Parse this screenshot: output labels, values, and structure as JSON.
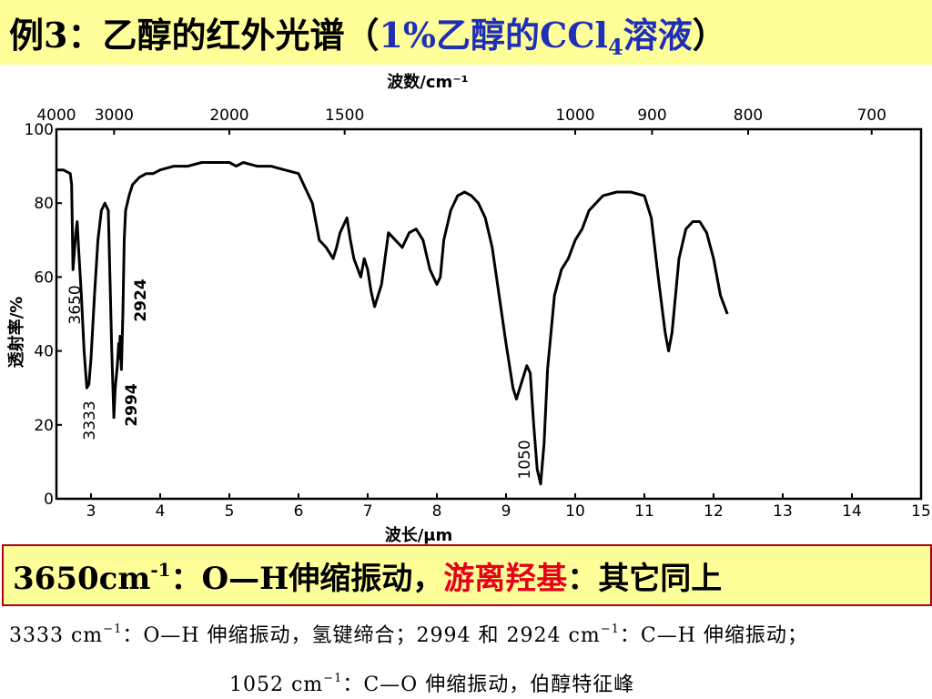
{
  "title": {
    "prefix": "例3：乙醇的红外光谱（",
    "highlight": "1%乙醇的CCl",
    "subscript": "4",
    "suffix_blue": "溶液",
    "suffix": "）"
  },
  "note": {
    "number": "3650cm",
    "exp": "-1",
    "part1": "：O—H伸缩振动，",
    "red": "游离羟基",
    "part2": "：其它同上"
  },
  "caption": {
    "line1_a": "3333 cm",
    "line1_exp1": "−1",
    "line1_b": "：O—H 伸缩振动，氢键缔合；2994 和 2924 cm",
    "line1_exp2": "−1",
    "line1_c": "：C—H 伸缩振动；",
    "line2_a": "1052 cm",
    "line2_exp": "−1",
    "line2_b": "：C—O 伸缩振动，伯醇特征峰"
  },
  "chart_data": {
    "type": "line",
    "title": "",
    "xlabel": "波长/μm",
    "x2label": "波数/cm⁻¹",
    "ylabel": "透射率/%",
    "xlim": [
      2.5,
      15
    ],
    "ylim": [
      0,
      100
    ],
    "x_ticks": [
      3,
      4,
      5,
      6,
      7,
      8,
      9,
      10,
      11,
      12,
      13,
      14,
      15
    ],
    "y_ticks": [
      0,
      20,
      40,
      60,
      80,
      100
    ],
    "top_ticks": [
      "4000",
      "3000",
      "2000",
      "1500",
      "1000",
      "900",
      "800",
      "700"
    ],
    "top_tick_values": [
      4000,
      3000,
      2000,
      1500,
      1000,
      900,
      800,
      700
    ],
    "series": [
      {
        "x": [
          2.5,
          2.6,
          2.7,
          2.72,
          2.74,
          2.78,
          2.8,
          2.82,
          2.86,
          2.9,
          2.94,
          2.97,
          3.0,
          3.05,
          3.1,
          3.15,
          3.2,
          3.25,
          3.3,
          3.33,
          3.35,
          3.38,
          3.4,
          3.41,
          3.42,
          3.44,
          3.46,
          3.48,
          3.5,
          3.55,
          3.6,
          3.7,
          3.8,
          3.9,
          4.0,
          4.2,
          4.4,
          4.6,
          4.8,
          5.0,
          5.1,
          5.2,
          5.4,
          5.6,
          5.8,
          6.0,
          6.2,
          6.3,
          6.4,
          6.5,
          6.55,
          6.6,
          6.7,
          6.75,
          6.8,
          6.9,
          6.95,
          7.0,
          7.05,
          7.1,
          7.2,
          7.25,
          7.3,
          7.4,
          7.5,
          7.6,
          7.7,
          7.8,
          7.9,
          8.0,
          8.05,
          8.1,
          8.2,
          8.3,
          8.4,
          8.5,
          8.6,
          8.7,
          8.8,
          8.9,
          9.0,
          9.1,
          9.15,
          9.2,
          9.3,
          9.35,
          9.4,
          9.45,
          9.5,
          9.55,
          9.6,
          9.7,
          9.8,
          9.9,
          10.0,
          10.1,
          10.2,
          10.4,
          10.6,
          10.8,
          11.0,
          11.1,
          11.2,
          11.3,
          11.35,
          11.4,
          11.5,
          11.6,
          11.7,
          11.8,
          11.9,
          12.0,
          12.1,
          12.2
        ],
        "y": [
          89,
          89,
          88,
          85,
          62,
          72,
          75,
          68,
          55,
          40,
          30,
          31,
          38,
          55,
          70,
          78,
          80,
          78,
          40,
          22,
          30,
          36,
          42,
          38,
          44,
          35,
          50,
          70,
          78,
          82,
          85,
          87,
          88,
          88,
          89,
          90,
          90,
          91,
          91,
          91,
          90,
          91,
          90,
          90,
          89,
          88,
          80,
          70,
          68,
          65,
          68,
          72,
          76,
          70,
          65,
          60,
          65,
          62,
          56,
          52,
          58,
          65,
          72,
          70,
          68,
          72,
          73,
          70,
          62,
          58,
          60,
          70,
          78,
          82,
          83,
          82,
          80,
          76,
          68,
          55,
          42,
          30,
          27,
          30,
          36,
          34,
          20,
          8,
          4,
          15,
          35,
          55,
          62,
          65,
          70,
          73,
          78,
          82,
          83,
          83,
          82,
          76,
          60,
          45,
          40,
          45,
          65,
          73,
          75,
          75,
          72,
          65,
          55,
          50
        ]
      }
    ],
    "annotations": [
      "3650",
      "3333",
      "2994",
      "2924",
      "1050"
    ],
    "grid": false
  }
}
